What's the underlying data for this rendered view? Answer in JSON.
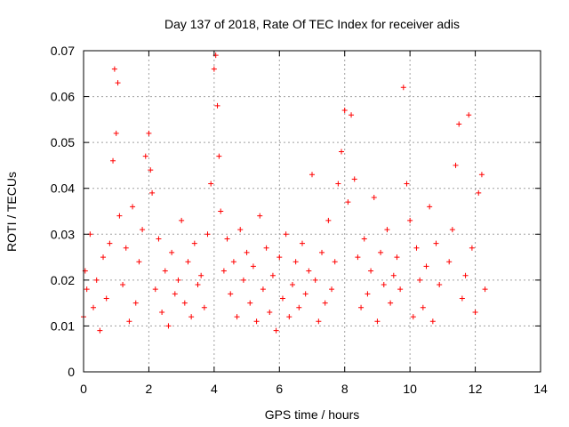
{
  "chart_data": {
    "type": "scatter",
    "title": "Day 137 of 2018, Rate Of TEC Index for receiver adis",
    "xlabel": "GPS time / hours",
    "ylabel": "ROTI / TECUs",
    "xlim": [
      0,
      14
    ],
    "ylim": [
      0,
      0.07
    ],
    "grid": true,
    "marker": "plus",
    "series_color": "#ff0000",
    "xticks": [
      0,
      2,
      4,
      6,
      8,
      10,
      12,
      14
    ],
    "yticks": [
      0,
      0.01,
      0.02,
      0.03,
      0.04,
      0.05,
      0.06,
      0.07
    ],
    "xtick_labels": [
      "0",
      "2",
      "4",
      "6",
      "8",
      "10",
      "12",
      "14"
    ],
    "ytick_labels": [
      "0",
      "0.01",
      "0.02",
      "0.03",
      "0.04",
      "0.05",
      "0.06",
      "0.07"
    ],
    "series": [
      {
        "name": "ROTI",
        "x": [
          0.0,
          0.05,
          0.1,
          0.2,
          0.3,
          0.4,
          0.5,
          0.6,
          0.7,
          0.8,
          0.9,
          0.95,
          1.0,
          1.05,
          1.1,
          1.2,
          1.3,
          1.4,
          1.5,
          1.6,
          1.7,
          1.8,
          1.9,
          2.0,
          2.05,
          2.1,
          2.2,
          2.3,
          2.4,
          2.5,
          2.6,
          2.7,
          2.8,
          2.9,
          3.0,
          3.1,
          3.2,
          3.3,
          3.4,
          3.5,
          3.6,
          3.7,
          3.8,
          3.9,
          4.0,
          4.05,
          4.1,
          4.15,
          4.2,
          4.3,
          4.4,
          4.5,
          4.6,
          4.7,
          4.8,
          4.9,
          5.0,
          5.1,
          5.2,
          5.3,
          5.4,
          5.5,
          5.6,
          5.7,
          5.8,
          5.9,
          6.0,
          6.1,
          6.2,
          6.3,
          6.4,
          6.5,
          6.6,
          6.7,
          6.8,
          6.9,
          7.0,
          7.1,
          7.2,
          7.3,
          7.4,
          7.5,
          7.6,
          7.7,
          7.8,
          7.9,
          8.0,
          8.1,
          8.2,
          8.3,
          8.4,
          8.5,
          8.6,
          8.7,
          8.8,
          8.9,
          9.0,
          9.1,
          9.2,
          9.3,
          9.4,
          9.5,
          9.6,
          9.7,
          9.8,
          9.9,
          10.0,
          10.1,
          10.2,
          10.3,
          10.4,
          10.5,
          10.6,
          10.7,
          10.8,
          10.9,
          11.2,
          11.3,
          11.4,
          11.5,
          11.6,
          11.7,
          11.8,
          11.9,
          12.0,
          12.1,
          12.2,
          12.3
        ],
        "y": [
          0.012,
          0.022,
          0.018,
          0.03,
          0.014,
          0.02,
          0.009,
          0.025,
          0.016,
          0.028,
          0.046,
          0.066,
          0.052,
          0.063,
          0.034,
          0.019,
          0.027,
          0.011,
          0.036,
          0.015,
          0.024,
          0.031,
          0.047,
          0.052,
          0.044,
          0.039,
          0.018,
          0.029,
          0.013,
          0.022,
          0.01,
          0.026,
          0.017,
          0.02,
          0.033,
          0.015,
          0.024,
          0.012,
          0.028,
          0.019,
          0.021,
          0.014,
          0.03,
          0.041,
          0.066,
          0.069,
          0.058,
          0.047,
          0.035,
          0.022,
          0.029,
          0.017,
          0.024,
          0.012,
          0.031,
          0.02,
          0.026,
          0.015,
          0.023,
          0.011,
          0.034,
          0.018,
          0.027,
          0.013,
          0.021,
          0.009,
          0.025,
          0.016,
          0.03,
          0.012,
          0.019,
          0.024,
          0.014,
          0.028,
          0.017,
          0.022,
          0.043,
          0.02,
          0.011,
          0.026,
          0.015,
          0.033,
          0.018,
          0.024,
          0.041,
          0.048,
          0.057,
          0.037,
          0.056,
          0.042,
          0.025,
          0.014,
          0.029,
          0.017,
          0.022,
          0.038,
          0.011,
          0.026,
          0.019,
          0.031,
          0.015,
          0.021,
          0.025,
          0.018,
          0.062,
          0.041,
          0.033,
          0.012,
          0.027,
          0.02,
          0.014,
          0.023,
          0.036,
          0.011,
          0.028,
          0.019,
          0.024,
          0.031,
          0.045,
          0.054,
          0.016,
          0.021,
          0.056,
          0.027,
          0.013,
          0.039,
          0.043,
          0.018
        ]
      }
    ]
  }
}
